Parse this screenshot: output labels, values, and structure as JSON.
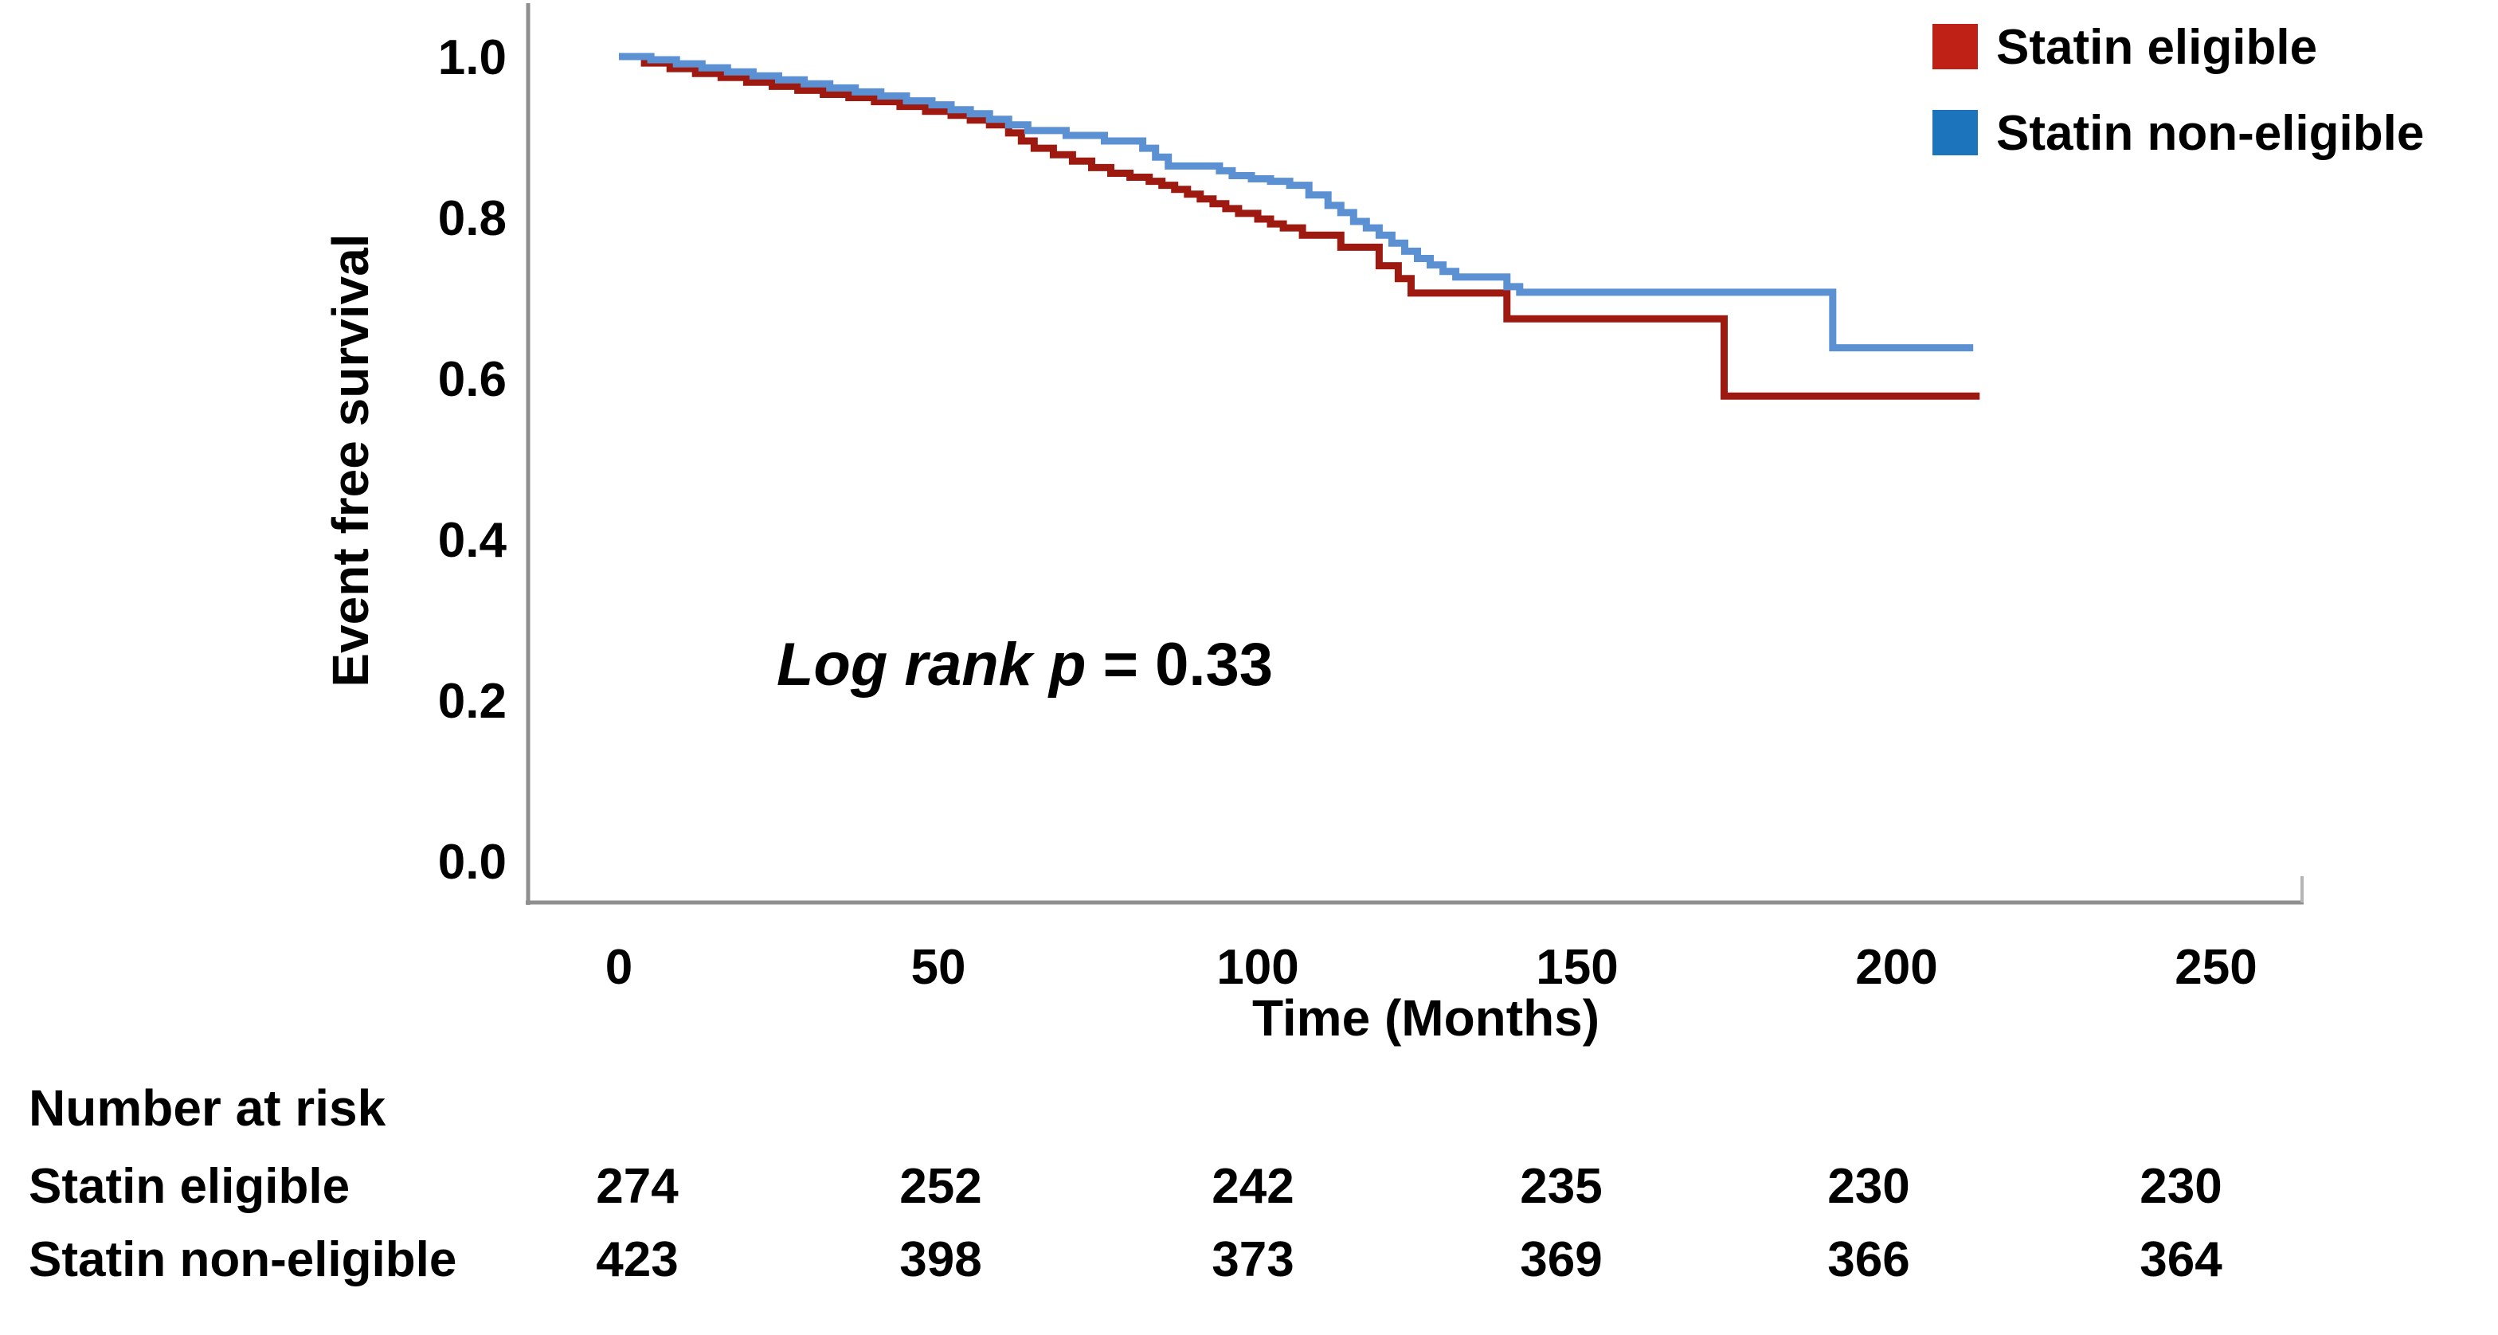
{
  "chart_data": {
    "type": "line",
    "subtype": "kaplan-meier-step",
    "title": "",
    "xlabel": "Time (Months)",
    "ylabel": "Event free survival",
    "xlim": [
      0,
      263
    ],
    "ylim": [
      0.0,
      1.0
    ],
    "x_ticks": [
      "0",
      "50",
      "100",
      "150",
      "200",
      "250"
    ],
    "y_ticks": [
      "1.0",
      "0.8",
      "0.6",
      "0.4",
      "0.2",
      "0.0"
    ],
    "grid": false,
    "legend_position": "top-right",
    "annotation": {
      "italic_part": "Log rank p",
      "value_part": " = 0.33"
    },
    "series": [
      {
        "name": "Statin eligible",
        "line_color": "#9e1a11",
        "legend_color": "#bf2116",
        "points": [
          [
            0,
            1.0
          ],
          [
            4,
            0.992
          ],
          [
            8,
            0.985
          ],
          [
            12,
            0.979
          ],
          [
            16,
            0.974
          ],
          [
            20,
            0.968
          ],
          [
            24,
            0.963
          ],
          [
            28,
            0.958
          ],
          [
            32,
            0.953
          ],
          [
            36,
            0.949
          ],
          [
            40,
            0.944
          ],
          [
            44,
            0.938
          ],
          [
            48,
            0.932
          ],
          [
            52,
            0.927
          ],
          [
            55,
            0.921
          ],
          [
            58,
            0.915
          ],
          [
            61,
            0.905
          ],
          [
            63,
            0.895
          ],
          [
            65,
            0.886
          ],
          [
            68,
            0.878
          ],
          [
            71,
            0.87
          ],
          [
            74,
            0.862
          ],
          [
            77,
            0.855
          ],
          [
            80,
            0.85
          ],
          [
            83,
            0.845
          ],
          [
            85,
            0.84
          ],
          [
            87,
            0.835
          ],
          [
            89,
            0.829
          ],
          [
            91,
            0.823
          ],
          [
            93,
            0.817
          ],
          [
            95,
            0.811
          ],
          [
            97,
            0.805
          ],
          [
            100,
            0.798
          ],
          [
            102,
            0.792
          ],
          [
            104,
            0.787
          ],
          [
            107,
            0.778
          ],
          [
            113,
            0.763
          ],
          [
            119,
            0.74
          ],
          [
            122,
            0.724
          ],
          [
            124,
            0.706
          ],
          [
            139,
            0.674
          ],
          [
            173,
            0.578
          ],
          [
            213,
            0.578
          ]
        ]
      },
      {
        "name": "Statin non-eligible",
        "line_color": "#5b90d2",
        "legend_color": "#1b74bc",
        "points": [
          [
            0,
            1.0
          ],
          [
            5,
            0.996
          ],
          [
            9,
            0.991
          ],
          [
            13,
            0.986
          ],
          [
            17,
            0.981
          ],
          [
            21,
            0.976
          ],
          [
            25,
            0.971
          ],
          [
            29,
            0.966
          ],
          [
            33,
            0.961
          ],
          [
            37,
            0.956
          ],
          [
            41,
            0.951
          ],
          [
            45,
            0.945
          ],
          [
            49,
            0.94
          ],
          [
            52,
            0.934
          ],
          [
            55,
            0.929
          ],
          [
            58,
            0.922
          ],
          [
            61,
            0.915
          ],
          [
            64,
            0.908
          ],
          [
            70,
            0.902
          ],
          [
            76,
            0.895
          ],
          [
            82,
            0.886
          ],
          [
            84,
            0.875
          ],
          [
            86,
            0.864
          ],
          [
            94,
            0.858
          ],
          [
            96,
            0.852
          ],
          [
            99,
            0.848
          ],
          [
            102,
            0.845
          ],
          [
            105,
            0.84
          ],
          [
            108,
            0.828
          ],
          [
            111,
            0.815
          ],
          [
            113,
            0.806
          ],
          [
            115,
            0.795
          ],
          [
            117,
            0.787
          ],
          [
            119,
            0.778
          ],
          [
            121,
            0.768
          ],
          [
            123,
            0.758
          ],
          [
            125,
            0.749
          ],
          [
            127,
            0.741
          ],
          [
            129,
            0.733
          ],
          [
            131,
            0.726
          ],
          [
            139,
            0.714
          ],
          [
            141,
            0.707
          ],
          [
            190,
            0.638
          ],
          [
            212,
            0.638
          ]
        ]
      }
    ],
    "log_rank_p": 0.33
  },
  "risk_table": {
    "title": "Number at risk",
    "time_columns": [
      "0",
      "50",
      "100",
      "150",
      "200",
      "250"
    ],
    "rows": [
      {
        "label": "Statin eligible",
        "values": [
          "274",
          "252",
          "242",
          "235",
          "230",
          "230"
        ]
      },
      {
        "label": "Statin non-eligible",
        "values": [
          "423",
          "398",
          "373",
          "369",
          "366",
          "364"
        ]
      }
    ]
  }
}
